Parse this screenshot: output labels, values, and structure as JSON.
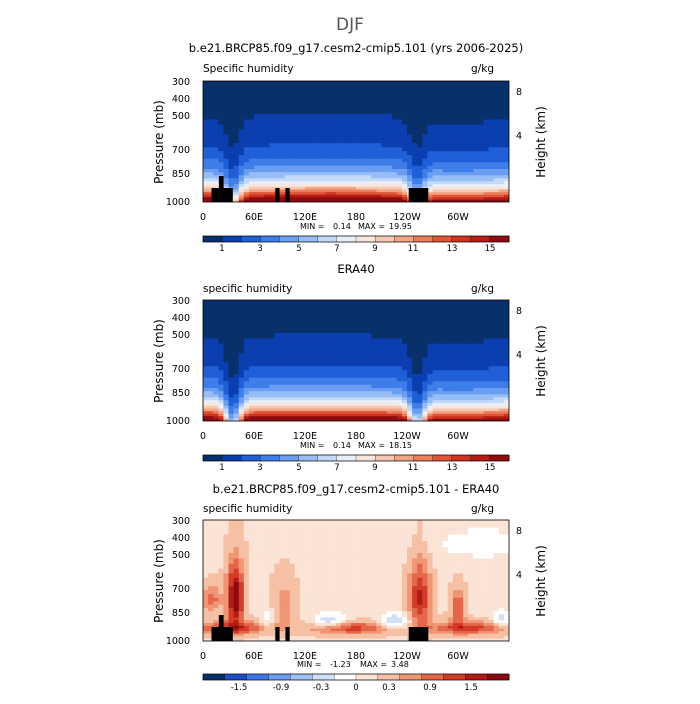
{
  "page": {
    "title": "DJF"
  },
  "colors": {
    "abs_scale": [
      "#08306b",
      "#0b3fb0",
      "#1f5fd8",
      "#3f7ee8",
      "#6a9ef2",
      "#97bdf6",
      "#c4d9f8",
      "#e8eff8",
      "#f8e6dc",
      "#f6c8b3",
      "#f2a585",
      "#eb7d5a",
      "#e05535",
      "#cf3420",
      "#b51c16",
      "#8e0b0f"
    ],
    "diff_scale": [
      "#08306b",
      "#1b4fc8",
      "#3c79e6",
      "#6c9ef1",
      "#9ec1f6",
      "#cfe0f8",
      "#ffffff",
      "#fbe3d5",
      "#f6c0a5",
      "#f09675",
      "#e5674a",
      "#d43b27",
      "#b31a16",
      "#8a0a0e"
    ],
    "topography": "#000000"
  },
  "chart_data": [
    {
      "type": "heatmap",
      "title": "b.e21.BRCP85.f09_g17.cesm2-cmip5.101 (yrs 2006-2025)",
      "left_label": "Specific humidity",
      "right_label": "g/kg",
      "ylabel": "Pressure (mb)",
      "y2label": "Height (km)",
      "xticks": [
        "0",
        "60E",
        "120E",
        "180",
        "120W",
        "60W"
      ],
      "yticks": [
        "300",
        "400",
        "500",
        "700",
        "850",
        "1000"
      ],
      "y2ticks": [
        "8",
        "4"
      ],
      "min_label": "MIN =",
      "min_value": "0.14",
      "max_label": "MAX =",
      "max_value": "19.95",
      "colorbar_ticks": [
        "1",
        "3",
        "5",
        "7",
        "9",
        "11",
        "13",
        "15"
      ],
      "color_levels": [
        1,
        2,
        3,
        4,
        5,
        6,
        7,
        8,
        9,
        10,
        11,
        12,
        13,
        14,
        15
      ],
      "topography_lon": [
        [
          10,
          35
        ],
        [
          85,
          90
        ],
        [
          97,
          102
        ],
        [
          242,
          265
        ]
      ]
    },
    {
      "type": "heatmap",
      "title": "ERA40",
      "left_label": "specific humidity",
      "right_label": "g/kg",
      "ylabel": "Pressure (mb)",
      "y2label": "Height (km)",
      "xticks": [
        "0",
        "60E",
        "120E",
        "180",
        "120W",
        "60W"
      ],
      "yticks": [
        "300",
        "400",
        "500",
        "700",
        "850",
        "1000"
      ],
      "y2ticks": [
        "8",
        "4"
      ],
      "min_label": "MIN =",
      "min_value": "0.14",
      "max_label": "MAX =",
      "max_value": "18.15",
      "colorbar_ticks": [
        "1",
        "3",
        "5",
        "7",
        "9",
        "11",
        "13",
        "15"
      ],
      "color_levels": [
        1,
        2,
        3,
        4,
        5,
        6,
        7,
        8,
        9,
        10,
        11,
        12,
        13,
        14,
        15
      ],
      "topography_lon": []
    },
    {
      "type": "heatmap",
      "title": "b.e21.BRCP85.f09_g17.cesm2-cmip5.101 - ERA40",
      "left_label": "specific humidity",
      "right_label": "g/kg",
      "ylabel": "Pressure (mb)",
      "y2label": "Height (km)",
      "xticks": [
        "0",
        "60E",
        "120E",
        "180",
        "120W",
        "60W"
      ],
      "yticks": [
        "300",
        "400",
        "500",
        "700",
        "850",
        "1000"
      ],
      "y2ticks": [
        "8",
        "4"
      ],
      "min_label": "MIN =",
      "min_value": "-1.23",
      "max_label": "MAX =",
      "max_value": "3.48",
      "colorbar_ticks": [
        "-1.5",
        "-0.9",
        "-0.3",
        "0",
        "0.3",
        "0.9",
        "1.5"
      ],
      "color_levels": [
        -1.8,
        -1.5,
        -1.2,
        -0.9,
        -0.6,
        -0.3,
        0,
        0.3,
        0.6,
        0.9,
        1.2,
        1.5,
        1.8
      ],
      "topography_lon": [
        [
          10,
          35
        ],
        [
          85,
          90
        ],
        [
          97,
          102
        ],
        [
          242,
          265
        ]
      ]
    }
  ]
}
